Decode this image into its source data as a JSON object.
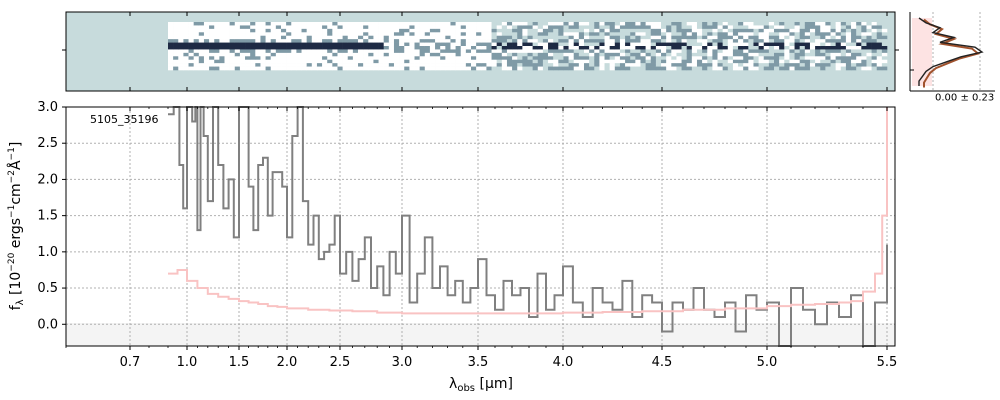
{
  "chart_data": [
    {
      "type": "heatmap",
      "panel": "2D spectrum",
      "colormap": [
        "#c7dbdc",
        "#ffffff",
        "#7f9aa6",
        "#1e2a44"
      ],
      "x_extent_um": [
        0.9,
        5.5
      ],
      "trace_peak_um": 1.5
    },
    {
      "type": "line",
      "panel": "1D spectrum",
      "annotation": "5105_35196",
      "xlabel": "λobs [μm]",
      "ylabel": "fλ [10⁻²⁰ ergs⁻¹cm⁻²Å⁻¹]",
      "xlabel_parts": {
        "lambda": "λ",
        "sub": "obs",
        "unit": " [μm]"
      },
      "ylabel_parts": {
        "f": "f",
        "sub": "λ",
        "open": " [10",
        "e1": "−20",
        "erg": " ergs",
        "e2": "−1",
        "cm": "cm",
        "e3": "−2",
        "ang": "Å",
        "e4": "−1",
        "close": "]"
      },
      "xlim": [
        0.6,
        5.52
      ],
      "ylim": [
        -0.3,
        3.0
      ],
      "grid": true,
      "x_ticks": [
        0.7,
        1.0,
        1.5,
        2.0,
        2.5,
        3.0,
        3.5,
        4.0,
        4.5,
        5.0,
        5.5
      ],
      "x_tick_labels": [
        "0.7",
        "1.0",
        "1.5",
        "2.0",
        "2.5",
        "3.0",
        "3.5",
        "4.0",
        "4.5",
        "5.0",
        "5.5"
      ],
      "y_ticks": [
        0.0,
        0.5,
        1.0,
        1.5,
        2.0,
        2.5,
        3.0
      ],
      "y_tick_labels": [
        "0.0",
        "0.5",
        "1.0",
        "1.5",
        "2.0",
        "2.5",
        "3.0"
      ],
      "series": [
        {
          "color": "#808080",
          "x": [
            0.9,
            0.93,
            0.96,
            0.98,
            1.0,
            1.02,
            1.05,
            1.08,
            1.1,
            1.13,
            1.16,
            1.2,
            1.25,
            1.3,
            1.35,
            1.4,
            1.45,
            1.5,
            1.55,
            1.6,
            1.65,
            1.7,
            1.75,
            1.8,
            1.85,
            1.9,
            1.95,
            2.0,
            2.05,
            2.1,
            2.15,
            2.2,
            2.25,
            2.3,
            2.35,
            2.4,
            2.45,
            2.5,
            2.55,
            2.6,
            2.65,
            2.7,
            2.75,
            2.8,
            2.85,
            2.9,
            2.95,
            3.0,
            3.05,
            3.1,
            3.15,
            3.2,
            3.25,
            3.3,
            3.35,
            3.4,
            3.45,
            3.5,
            3.55,
            3.6,
            3.65,
            3.7,
            3.75,
            3.8,
            3.85,
            3.9,
            3.95,
            4.0,
            4.05,
            4.1,
            4.15,
            4.2,
            4.25,
            4.3,
            4.35,
            4.4,
            4.45,
            4.5,
            4.55,
            4.6,
            4.65,
            4.7,
            4.75,
            4.8,
            4.85,
            4.9,
            4.95,
            5.0,
            5.05,
            5.1,
            5.15,
            5.2,
            5.25,
            5.3,
            5.35,
            5.4,
            5.45,
            5.5
          ],
          "y": [
            2.9,
            3.0,
            2.2,
            1.6,
            3.0,
            3.0,
            2.8,
            3.0,
            1.3,
            3.0,
            2.6,
            1.7,
            3.0,
            2.2,
            1.6,
            2.0,
            1.2,
            3.0,
            3.0,
            1.9,
            1.3,
            2.2,
            2.3,
            1.5,
            2.1,
            2.1,
            1.9,
            1.2,
            2.6,
            3.0,
            1.7,
            1.1,
            1.5,
            0.9,
            1.0,
            1.1,
            1.5,
            0.7,
            1.0,
            0.6,
            0.9,
            1.2,
            0.5,
            0.8,
            0.4,
            1.0,
            0.7,
            1.5,
            0.3,
            0.7,
            1.2,
            0.5,
            0.8,
            0.4,
            0.6,
            0.3,
            0.5,
            0.9,
            0.4,
            0.2,
            0.6,
            0.4,
            0.5,
            0.1,
            0.7,
            0.2,
            0.4,
            0.8,
            0.3,
            0.1,
            0.5,
            0.3,
            0.2,
            0.6,
            0.1,
            0.4,
            0.3,
            -0.1,
            0.3,
            0.2,
            0.5,
            0.2,
            0.1,
            0.3,
            -0.1,
            0.4,
            0.2,
            0.3,
            -0.3,
            0.5,
            0.2,
            0.0,
            0.3,
            0.1,
            0.4,
            -0.3,
            0.3,
            1.1
          ]
        },
        {
          "color": "#f9c3c3",
          "x": [
            0.9,
            0.95,
            1.0,
            1.1,
            1.2,
            1.3,
            1.4,
            1.5,
            1.6,
            1.7,
            1.8,
            1.9,
            2.0,
            2.2,
            2.4,
            2.6,
            2.8,
            3.0,
            3.2,
            3.4,
            3.6,
            3.8,
            4.0,
            4.2,
            4.4,
            4.6,
            4.8,
            5.0,
            5.1,
            5.2,
            5.3,
            5.35,
            5.4,
            5.45,
            5.48,
            5.5
          ],
          "y": [
            0.7,
            0.75,
            0.6,
            0.5,
            0.42,
            0.38,
            0.35,
            0.32,
            0.3,
            0.28,
            0.25,
            0.24,
            0.22,
            0.2,
            0.19,
            0.18,
            0.16,
            0.15,
            0.15,
            0.15,
            0.15,
            0.15,
            0.16,
            0.17,
            0.18,
            0.2,
            0.22,
            0.25,
            0.27,
            0.28,
            0.3,
            0.32,
            0.45,
            0.7,
            1.5,
            3.0
          ]
        }
      ]
    },
    {
      "type": "line",
      "panel": "spatial profile",
      "annotation": "0.00 ± 0.23",
      "profile": [
        0.1,
        0.2,
        0.4,
        0.3,
        0.6,
        0.4,
        0.9,
        1.0,
        0.7,
        0.5,
        0.3,
        0.2,
        0.15,
        0.1,
        0.1
      ]
    }
  ]
}
